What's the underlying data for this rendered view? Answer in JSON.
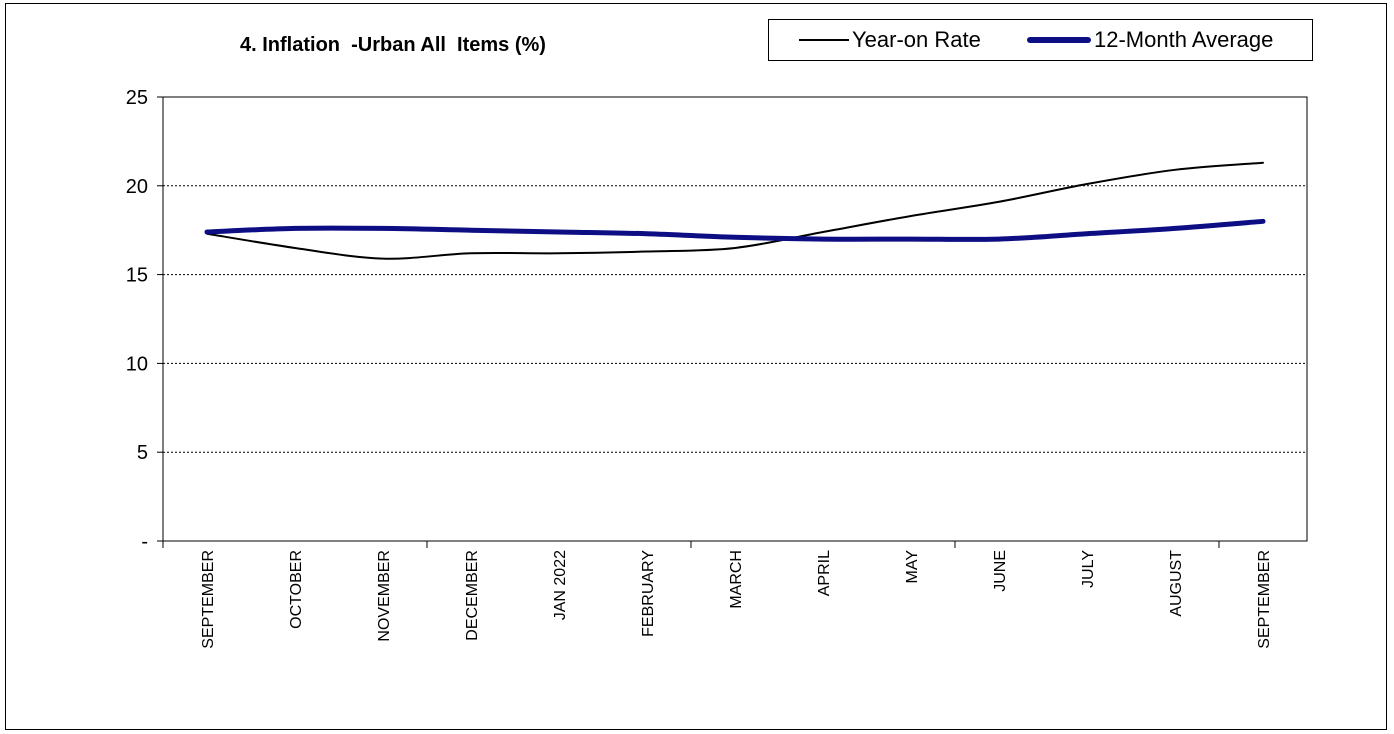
{
  "chart_data": {
    "type": "line",
    "title": "4. Inflation  -Urban All  Items (%)",
    "categories": [
      "SEPTEMBER",
      "OCTOBER",
      "NOVEMBER",
      "DECEMBER",
      "JAN 2022",
      "FEBRUARY",
      "MARCH",
      "APRIL",
      "MAY",
      "JUNE",
      "JULY",
      "AUGUST",
      "SEPTEMBER"
    ],
    "y_ticks": [
      "-",
      "5",
      "10",
      "15",
      "20",
      "25"
    ],
    "ylim": [
      0,
      25
    ],
    "grid": "horizontal dotted",
    "legend_position": "top-right",
    "series": [
      {
        "name": "Year-on Rate",
        "color": "#000000",
        "values": [
          17.3,
          16.5,
          15.9,
          16.2,
          16.2,
          16.3,
          16.5,
          17.4,
          18.3,
          19.1,
          20.1,
          20.9,
          21.3
        ]
      },
      {
        "name": "12-Month Average",
        "color": "#0e0e84",
        "values": [
          17.4,
          17.6,
          17.6,
          17.5,
          17.4,
          17.3,
          17.1,
          17.0,
          17.0,
          17.0,
          17.3,
          17.6,
          18.0
        ]
      }
    ]
  }
}
